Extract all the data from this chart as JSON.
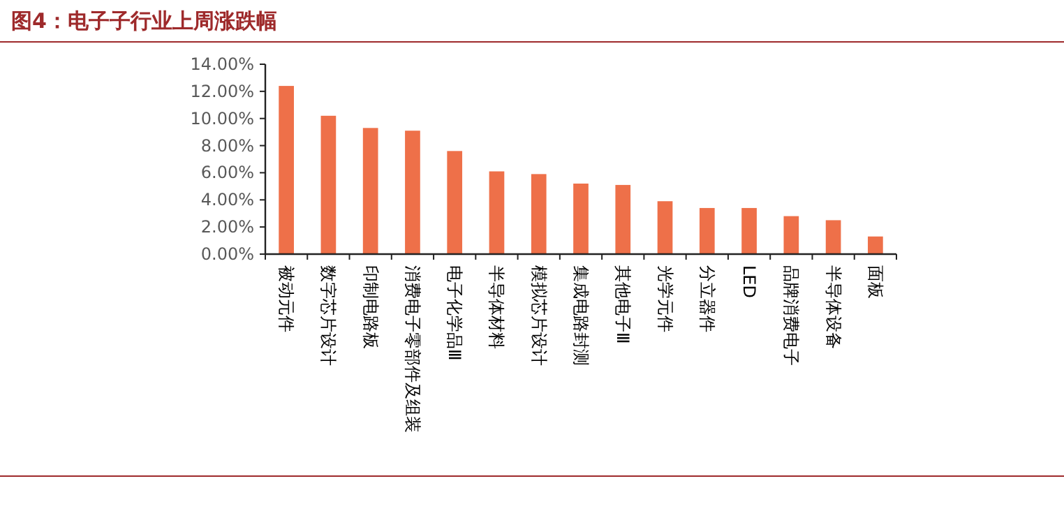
{
  "chart_data": {
    "type": "bar",
    "title": "图4：电子子行业上周涨跌幅",
    "categories": [
      "被动元件",
      "数字芯片设计",
      "印制电路板",
      "消费电子零部件及组装",
      "电子化学品Ⅲ",
      "半导体材料",
      "模拟芯片设计",
      "集成电路封测",
      "其他电子Ⅲ",
      "光学元件",
      "分立器件",
      "LED",
      "品牌消费电子",
      "半导体设备",
      "面板"
    ],
    "values": [
      12.4,
      10.2,
      9.3,
      9.1,
      7.6,
      6.1,
      5.9,
      5.2,
      5.1,
      3.9,
      3.4,
      3.4,
      2.8,
      2.5,
      1.3
    ],
    "color": "#ee7049",
    "ylim": [
      0,
      14
    ],
    "yticks": [
      {
        "value": 0,
        "label": "0.00%"
      },
      {
        "value": 2,
        "label": "2.00%"
      },
      {
        "value": 4,
        "label": "4.00%"
      },
      {
        "value": 6,
        "label": "6.00%"
      },
      {
        "value": 8,
        "label": "8.00%"
      },
      {
        "value": 10,
        "label": "10.00%"
      },
      {
        "value": 12,
        "label": "12.00%"
      },
      {
        "value": 14,
        "label": "14.00%"
      }
    ],
    "grid": false
  }
}
